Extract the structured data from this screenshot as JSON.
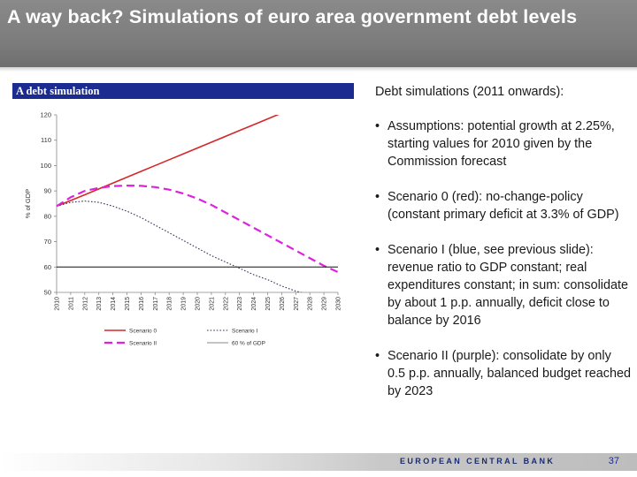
{
  "slide": {
    "title": "A way back? Simulations of euro area government debt levels",
    "intro": "Debt simulations (2011 onwards):",
    "bullets": [
      "Assumptions: potential growth at 2.25%, starting values for 2010 given by the Commission forecast",
      "Scenario 0 (red): no-change-policy (constant primary deficit at 3.3% of GDP)",
      "Scenario I (blue, see previous slide): revenue ratio to GDP constant; real expenditures constant; in sum: consolidate by about 1 p.p. annually, deficit close to balance by 2016",
      "Scenario II (purple): consolidate by only 0.5 p.p. annually, balanced budget reached by 2023"
    ],
    "bullet_char": "•",
    "footer_bank": "EUROPEAN CENTRAL BANK",
    "page_number": "37"
  },
  "chart_data": {
    "type": "line",
    "title": "A debt simulation",
    "ylabel": "% of GDP",
    "xlabel": "",
    "ylim": [
      50,
      120
    ],
    "yticks": [
      50,
      60,
      70,
      80,
      90,
      100,
      110,
      120
    ],
    "x": [
      2010,
      2011,
      2012,
      2013,
      2014,
      2015,
      2016,
      2017,
      2018,
      2019,
      2020,
      2021,
      2022,
      2023,
      2024,
      2025,
      2026,
      2027,
      2028,
      2029,
      2030
    ],
    "legend_placement": "bottom",
    "grid": false,
    "series": [
      {
        "name": "Scenario 0",
        "color": "#d62728",
        "style": "solid",
        "values": [
          84,
          86.2,
          88.5,
          90.8,
          93.1,
          95.4,
          97.7,
          100,
          102.3,
          104.6,
          106.9,
          109.2,
          111.5,
          113.8,
          116.1,
          118.4,
          120.7,
          null,
          null,
          null,
          null
        ]
      },
      {
        "name": "Scenario I",
        "color": "#333355",
        "style": "dotted",
        "values": [
          84,
          85.5,
          86,
          85.5,
          84,
          82,
          79.5,
          76.5,
          73.5,
          70.5,
          67.5,
          64.5,
          62,
          59.5,
          57,
          55,
          52.5,
          50.5,
          49,
          null,
          null
        ]
      },
      {
        "name": "Scenario II",
        "color": "#dd22dd",
        "style": "dashed",
        "values": [
          84,
          87.5,
          90,
          91.2,
          91.9,
          92.1,
          92,
          91.5,
          90.5,
          89,
          87,
          84.5,
          81.5,
          78.5,
          75.5,
          72.5,
          69.5,
          66.5,
          63.5,
          60.5,
          58
        ]
      },
      {
        "name": "60 % of GDP",
        "color": "#111111",
        "style": "solid",
        "values": [
          60,
          60,
          60,
          60,
          60,
          60,
          60,
          60,
          60,
          60,
          60,
          60,
          60,
          60,
          60,
          60,
          60,
          60,
          60,
          60,
          60
        ]
      }
    ]
  }
}
